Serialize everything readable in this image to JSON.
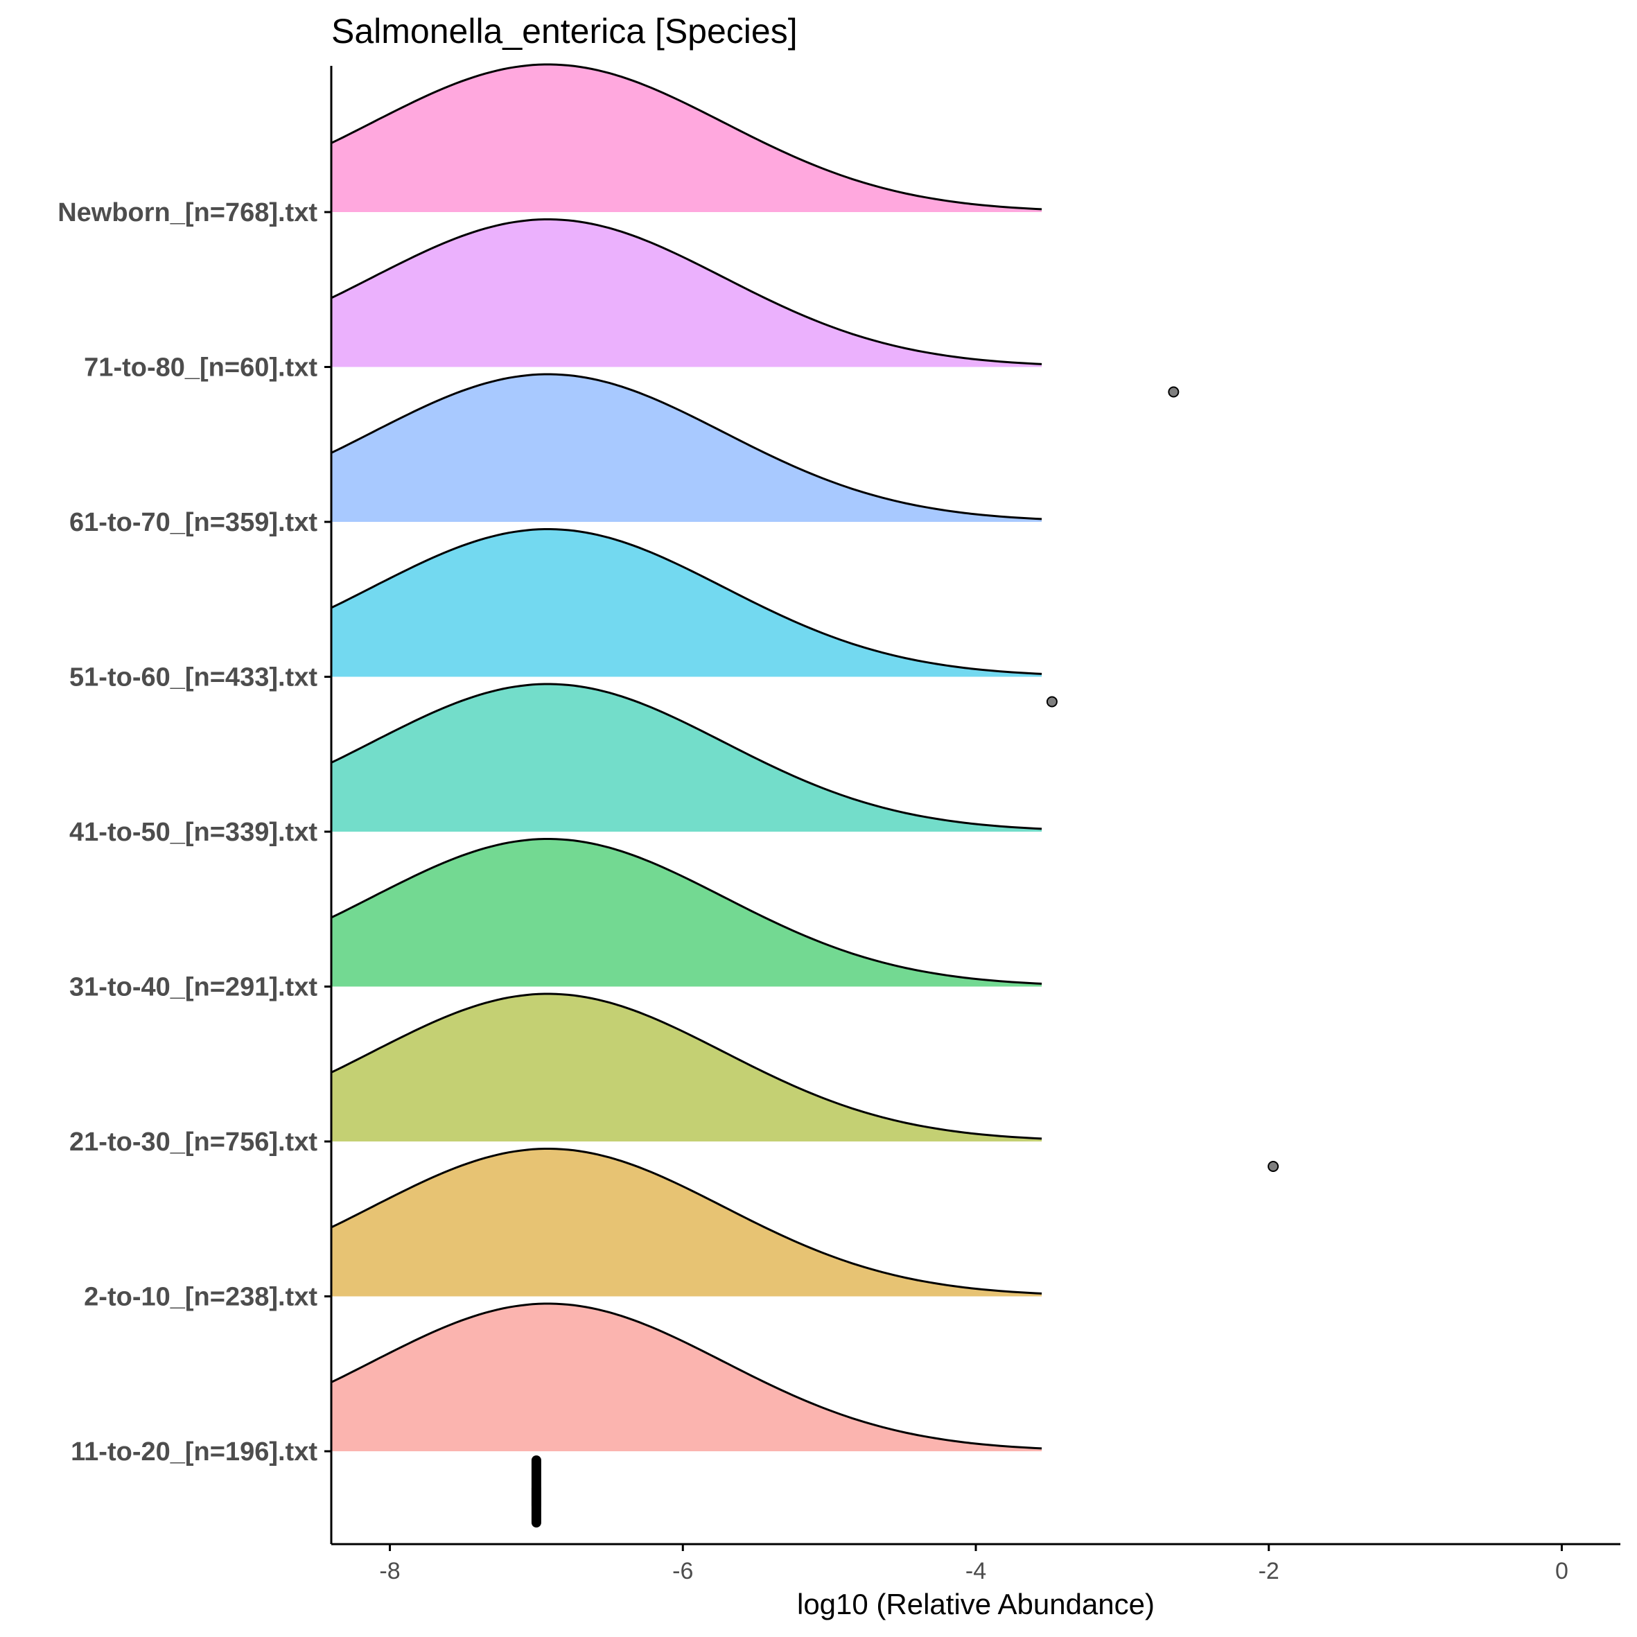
{
  "chart_data": {
    "type": "ridgeline",
    "title": "Salmonella_enterica [Species]",
    "xlabel": "log10 (Relative Abundance)",
    "ylabel": "",
    "xlim": [
      -8.4,
      0.4
    ],
    "x_ticks": [
      -8,
      -6,
      -4,
      -2,
      0
    ],
    "x_tick_labels": [
      "-8",
      "-6",
      "-4",
      "-2",
      "0"
    ],
    "density_range": [
      -8.4,
      -3.55
    ],
    "density_peak_x": -6.92,
    "density_sd": 1.2,
    "grid": false,
    "legend": "none",
    "series": [
      {
        "name": "11-to-20_[n=196].txt",
        "color": "#F8766D",
        "points": [
          {
            "x": -7.0,
            "count": 196
          }
        ],
        "outliers": []
      },
      {
        "name": "2-to-10_[n=238].txt",
        "color": "#D39200",
        "points": [
          {
            "x": -7.0,
            "count": 238
          }
        ],
        "outliers": []
      },
      {
        "name": "21-to-30_[n=756].txt",
        "color": "#93AA00",
        "points": [
          {
            "x": -7.0,
            "count": 755
          }
        ],
        "outliers": [
          -1.97
        ]
      },
      {
        "name": "31-to-40_[n=291].txt",
        "color": "#00BA38",
        "points": [
          {
            "x": -7.0,
            "count": 291
          }
        ],
        "outliers": []
      },
      {
        "name": "41-to-50_[n=339].txt",
        "color": "#00C19F",
        "points": [
          {
            "x": -7.0,
            "count": 339
          }
        ],
        "outliers": []
      },
      {
        "name": "51-to-60_[n=433].txt",
        "color": "#00B9E3",
        "points": [
          {
            "x": -7.0,
            "count": 432
          }
        ],
        "outliers": [
          -3.48
        ]
      },
      {
        "name": "61-to-70_[n=359].txt",
        "color": "#619CFF",
        "points": [
          {
            "x": -7.0,
            "count": 359
          }
        ],
        "outliers": []
      },
      {
        "name": "71-to-80_[n=60].txt",
        "color": "#DB72FB",
        "points": [
          {
            "x": -7.0,
            "count": 59
          }
        ],
        "outliers": [
          -2.65
        ]
      },
      {
        "name": "Newborn_[n=768].txt",
        "color": "#FF61C3",
        "points": [
          {
            "x": -7.0,
            "count": 768
          }
        ],
        "outliers": []
      }
    ]
  }
}
